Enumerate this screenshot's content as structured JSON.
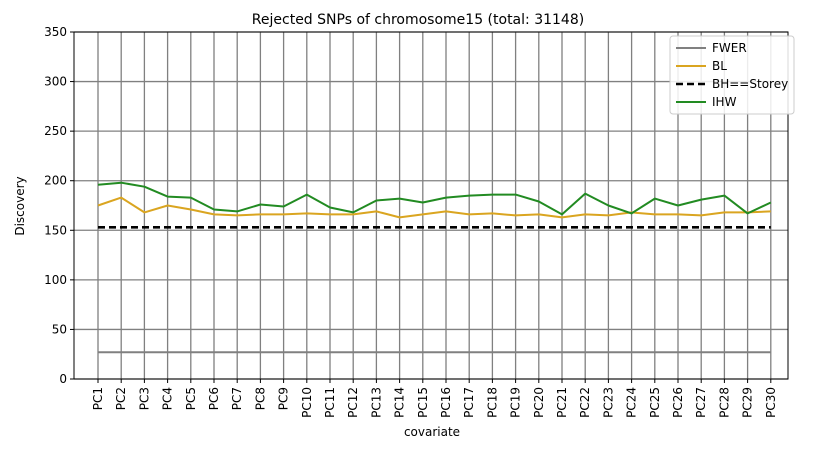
{
  "chart_data": {
    "type": "line",
    "title": "Rejected SNPs of chromosome15 (total: 31148)",
    "xlabel": "covariate",
    "ylabel": "Discovery",
    "ylim": [
      0,
      350
    ],
    "yticks": [
      0,
      50,
      100,
      150,
      200,
      250,
      300,
      350
    ],
    "grid": true,
    "legend_position": "top-right",
    "categories": [
      "PC1",
      "PC2",
      "PC3",
      "PC4",
      "PC5",
      "PC6",
      "PC7",
      "PC8",
      "PC9",
      "PC10",
      "PC11",
      "PC12",
      "PC13",
      "PC14",
      "PC15",
      "PC16",
      "PC17",
      "PC18",
      "PC19",
      "PC20",
      "PC21",
      "PC22",
      "PC23",
      "PC24",
      "PC25",
      "PC26",
      "PC27",
      "PC28",
      "PC29",
      "PC30"
    ],
    "series": [
      {
        "name": "FWER",
        "color": "#808080",
        "dash": "solid",
        "values": [
          27,
          27,
          27,
          27,
          27,
          27,
          27,
          27,
          27,
          27,
          27,
          27,
          27,
          27,
          27,
          27,
          27,
          27,
          27,
          27,
          27,
          27,
          27,
          27,
          27,
          27,
          27,
          27,
          27,
          27
        ]
      },
      {
        "name": "BL",
        "color": "#daa520",
        "dash": "solid",
        "values": [
          175,
          183,
          168,
          175,
          171,
          166,
          165,
          166,
          166,
          167,
          166,
          166,
          169,
          163,
          166,
          169,
          166,
          167,
          165,
          166,
          163,
          166,
          165,
          168,
          166,
          166,
          165,
          168,
          168,
          169
        ]
      },
      {
        "name": "BH==Storey",
        "color": "#000000",
        "dash": "dashed",
        "values": [
          153,
          153,
          153,
          153,
          153,
          153,
          153,
          153,
          153,
          153,
          153,
          153,
          153,
          153,
          153,
          153,
          153,
          153,
          153,
          153,
          153,
          153,
          153,
          153,
          153,
          153,
          153,
          153,
          153,
          153
        ]
      },
      {
        "name": "IHW",
        "color": "#228b22",
        "dash": "solid",
        "values": [
          196,
          198,
          194,
          184,
          183,
          171,
          169,
          176,
          174,
          186,
          173,
          168,
          180,
          182,
          178,
          183,
          185,
          186,
          186,
          179,
          166,
          187,
          175,
          167,
          182,
          175,
          181,
          185,
          167,
          178
        ]
      }
    ]
  }
}
